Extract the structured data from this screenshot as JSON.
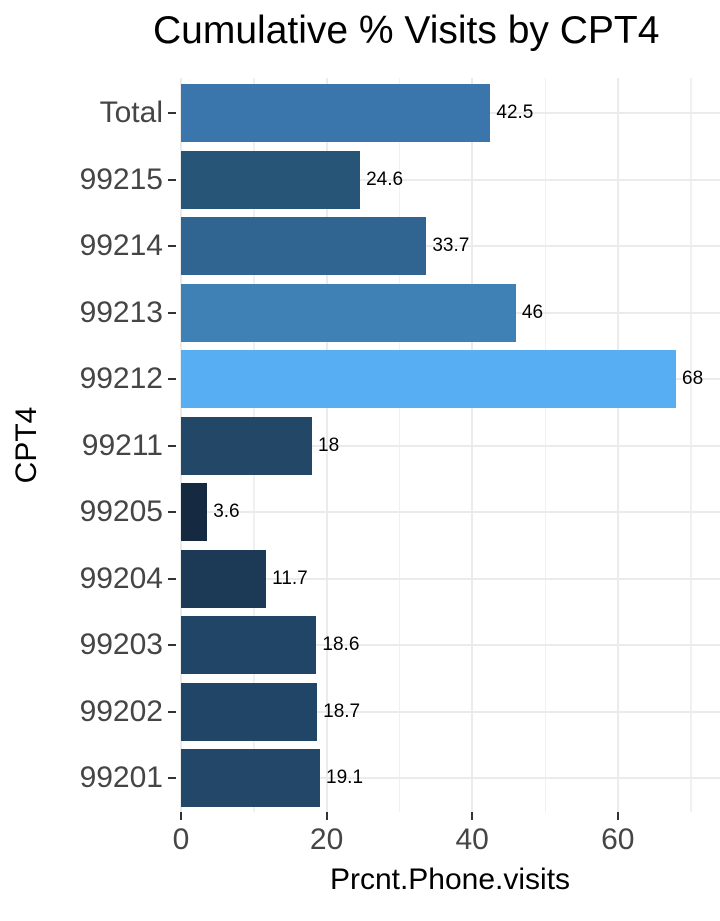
{
  "chart_data": {
    "type": "bar",
    "orientation": "horizontal",
    "title": "Cumulative % Visits by CPT4",
    "xlabel": "Prcnt.Phone.visits",
    "ylabel": "CPT4",
    "categories": [
      "Total",
      "99215",
      "99214",
      "99213",
      "99212",
      "99211",
      "99205",
      "99204",
      "99203",
      "99202",
      "99201"
    ],
    "values": [
      42.5,
      24.6,
      33.7,
      46,
      68,
      18,
      3.6,
      11.7,
      18.6,
      18.7,
      19.1
    ],
    "value_labels": [
      "42.5",
      "24.6",
      "33.7",
      "46",
      "68",
      "18",
      "3.6",
      "11.7",
      "18.6",
      "18.7",
      "19.1"
    ],
    "bar_colors": [
      "#3a76ab",
      "#265578",
      "#306591",
      "#3f80b5",
      "#57aef3",
      "#224767",
      "#152a40",
      "#1c3a55",
      "#214566",
      "#214567",
      "#224768"
    ],
    "x_tick_labels": [
      "0",
      "20",
      "40",
      "60"
    ],
    "x_ticks": [
      0,
      20,
      40,
      60
    ],
    "x_minor_ticks": [
      10,
      30,
      50,
      70
    ],
    "xlim": [
      0,
      74
    ],
    "grid": true,
    "legend": false,
    "colors": {
      "panel_background": "#ffffff",
      "grid_major": "#ebebeb",
      "grid_minor": "#f0f0f0",
      "axis_text": "#454545",
      "tick_mark": "#333333",
      "title_text": "#000000",
      "gradient_low": "#132b43",
      "gradient_high": "#56b1f7"
    }
  }
}
